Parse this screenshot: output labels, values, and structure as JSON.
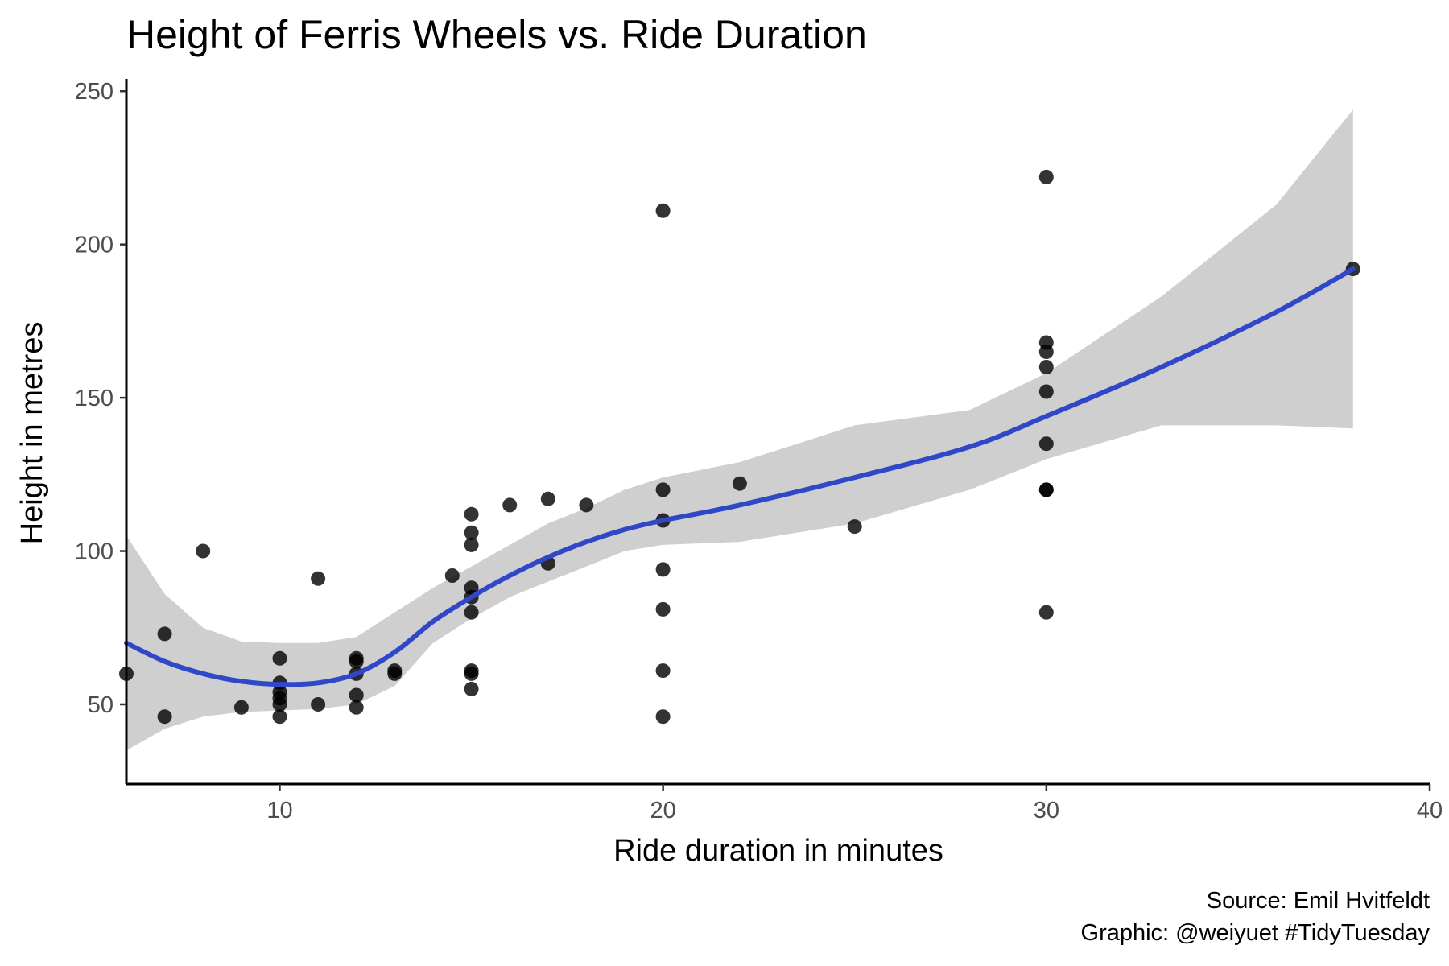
{
  "chart_data": {
    "type": "scatter",
    "title": "Height of Ferris Wheels vs. Ride Duration",
    "xlabel": "Ride duration in minutes",
    "ylabel": "Height in metres",
    "caption_lines": [
      "Source: Emil Hvitfeldt",
      "Graphic: @weiyuet #TidyTuesday"
    ],
    "xlim": [
      6,
      40
    ],
    "ylim": [
      24,
      254
    ],
    "x_ticks": [
      10,
      20,
      30,
      40
    ],
    "y_ticks": [
      50,
      100,
      150,
      200,
      250
    ],
    "grid": false,
    "point_color": "#000000",
    "point_alpha": 0.8,
    "smooth_color": "#3048C8",
    "band_color": "#CFCFCF",
    "points": [
      {
        "x": 6,
        "y": 60
      },
      {
        "x": 7,
        "y": 73
      },
      {
        "x": 7,
        "y": 46
      },
      {
        "x": 8,
        "y": 100
      },
      {
        "x": 9,
        "y": 49
      },
      {
        "x": 10,
        "y": 65
      },
      {
        "x": 10,
        "y": 57
      },
      {
        "x": 10,
        "y": 54
      },
      {
        "x": 10,
        "y": 52
      },
      {
        "x": 10,
        "y": 50
      },
      {
        "x": 10,
        "y": 46
      },
      {
        "x": 11,
        "y": 91
      },
      {
        "x": 11,
        "y": 50
      },
      {
        "x": 12,
        "y": 65
      },
      {
        "x": 12,
        "y": 64
      },
      {
        "x": 12,
        "y": 60
      },
      {
        "x": 12,
        "y": 53
      },
      {
        "x": 12,
        "y": 49
      },
      {
        "x": 13,
        "y": 61
      },
      {
        "x": 13,
        "y": 60
      },
      {
        "x": 14.5,
        "y": 92
      },
      {
        "x": 15,
        "y": 112
      },
      {
        "x": 15,
        "y": 106
      },
      {
        "x": 15,
        "y": 102
      },
      {
        "x": 15,
        "y": 88
      },
      {
        "x": 15,
        "y": 85
      },
      {
        "x": 15,
        "y": 80
      },
      {
        "x": 15,
        "y": 61
      },
      {
        "x": 15,
        "y": 60
      },
      {
        "x": 15,
        "y": 55
      },
      {
        "x": 16,
        "y": 115
      },
      {
        "x": 17,
        "y": 117
      },
      {
        "x": 17,
        "y": 96
      },
      {
        "x": 18,
        "y": 115
      },
      {
        "x": 20,
        "y": 211
      },
      {
        "x": 20,
        "y": 120
      },
      {
        "x": 20,
        "y": 110
      },
      {
        "x": 20,
        "y": 94
      },
      {
        "x": 20,
        "y": 81
      },
      {
        "x": 20,
        "y": 61
      },
      {
        "x": 20,
        "y": 46
      },
      {
        "x": 22,
        "y": 122
      },
      {
        "x": 25,
        "y": 108
      },
      {
        "x": 30,
        "y": 222
      },
      {
        "x": 30,
        "y": 168
      },
      {
        "x": 30,
        "y": 165
      },
      {
        "x": 30,
        "y": 160
      },
      {
        "x": 30,
        "y": 152
      },
      {
        "x": 30,
        "y": 135
      },
      {
        "x": 30,
        "y": 120
      },
      {
        "x": 30,
        "y": 120
      },
      {
        "x": 30,
        "y": 80
      },
      {
        "x": 38,
        "y": 192
      }
    ],
    "smooth": {
      "x": [
        6,
        7,
        8,
        9,
        10,
        11,
        12,
        13,
        14,
        15,
        16,
        17,
        18,
        19,
        20,
        22,
        25,
        28,
        30,
        33,
        36,
        38
      ],
      "y": [
        70,
        64,
        60,
        57.5,
        56.5,
        57,
        60,
        67,
        77,
        85,
        92,
        98,
        103,
        107,
        110,
        115,
        124,
        134,
        144,
        160,
        178,
        192
      ],
      "lower": [
        35,
        42,
        46,
        47.5,
        48,
        48.5,
        50,
        56,
        70,
        78,
        85,
        90,
        95,
        100,
        102,
        103,
        109,
        120,
        130,
        141,
        141,
        140
      ],
      "upper": [
        105,
        86,
        75,
        70.5,
        70,
        70,
        72,
        80,
        88,
        95,
        102,
        109,
        114,
        120,
        124,
        129,
        141,
        146,
        158,
        183,
        213,
        244
      ]
    }
  }
}
